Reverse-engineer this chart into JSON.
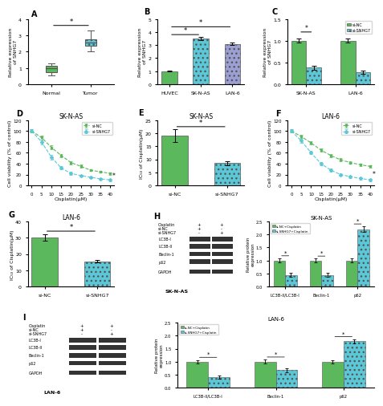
{
  "panel_A": {
    "title": "",
    "ylabel": "Relative expression\nof SNHG7",
    "xlabel_labels": [
      "Normal",
      "Tumor"
    ],
    "normal_box": {
      "q1": 0.75,
      "median": 1.0,
      "q3": 1.15,
      "whisker_low": 0.55,
      "whisker_high": 1.3
    },
    "tumor_box": {
      "q1": 2.35,
      "median": 2.55,
      "q3": 2.75,
      "whisker_low": 2.0,
      "whisker_high": 3.3
    },
    "ylim": [
      0,
      4
    ],
    "yticks": [
      0,
      1,
      2,
      3,
      4
    ],
    "sig_label": "*",
    "normal_color": "#5cb85c",
    "tumor_color": "#5bc8d8"
  },
  "panel_B": {
    "title": "",
    "ylabel": "Relative expression\nof SNHG7",
    "categories": [
      "HUVEC",
      "SK-N-AS",
      "LAN-6"
    ],
    "values": [
      1.0,
      3.5,
      3.1
    ],
    "errors": [
      0.05,
      0.15,
      0.1
    ],
    "colors": [
      "#5cb85c",
      "#5bc8d8",
      "#9b9fd4"
    ],
    "ylim": [
      0,
      5
    ],
    "yticks": [
      0,
      1,
      2,
      3,
      4,
      5
    ],
    "sig_label": "*"
  },
  "panel_C": {
    "title": "",
    "ylabel": "Relative expression\nof SNHG7",
    "groups": [
      "SK-N-AS",
      "LAN-6"
    ],
    "si_NC_values": [
      1.0,
      1.0
    ],
    "si_SNHG7_values": [
      0.38,
      0.28
    ],
    "si_NC_errors": [
      0.05,
      0.05
    ],
    "si_SNHG7_errors": [
      0.04,
      0.04
    ],
    "ylim": [
      0,
      1.5
    ],
    "yticks": [
      0.0,
      0.5,
      1.0,
      1.5
    ],
    "sig_label": "*",
    "si_NC_color": "#5cb85c",
    "si_SNHG7_color": "#5bc8d8"
  },
  "panel_D": {
    "title": "SK-N-AS",
    "xlabel": "Cisplatin(μM)",
    "ylabel": "Cell viability (% of control)",
    "x": [
      0,
      5,
      10,
      15,
      20,
      25,
      30,
      35,
      40
    ],
    "si_NC": [
      100,
      88,
      70,
      55,
      42,
      35,
      28,
      25,
      22
    ],
    "si_SNHG7": [
      100,
      80,
      52,
      32,
      22,
      18,
      15,
      12,
      10
    ],
    "si_NC_errors": [
      3,
      4,
      4,
      3,
      3,
      3,
      2,
      2,
      2
    ],
    "si_SNHG7_errors": [
      3,
      4,
      4,
      3,
      3,
      2,
      2,
      2,
      2
    ],
    "ylim": [
      0,
      120
    ],
    "yticks": [
      0,
      20,
      40,
      60,
      80,
      100,
      120
    ],
    "xticks": [
      0,
      5,
      10,
      15,
      20,
      25,
      30,
      35,
      40
    ],
    "si_NC_color": "#5cb85c",
    "si_SNHG7_color": "#5bc8d8",
    "sig_label": "*"
  },
  "panel_E": {
    "title": "SK-N-AS",
    "ylabel": "IC₅₀ of Cisplatin(μM)",
    "categories": [
      "si-NC",
      "si-SNHG7"
    ],
    "values": [
      19.0,
      8.5
    ],
    "errors": [
      2.5,
      0.8
    ],
    "colors": [
      "#5cb85c",
      "#5bc8d8"
    ],
    "ylim": [
      0,
      25
    ],
    "yticks": [
      0,
      5,
      10,
      15,
      20,
      25
    ],
    "sig_label": "*"
  },
  "panel_F": {
    "title": "LAN-6",
    "xlabel": "Cisplatin(μM)",
    "ylabel": "Cell viability (% of control)",
    "x": [
      0,
      5,
      10,
      15,
      20,
      25,
      30,
      35,
      40
    ],
    "si_NC": [
      100,
      90,
      78,
      65,
      55,
      47,
      42,
      38,
      35
    ],
    "si_SNHG7": [
      100,
      82,
      60,
      40,
      28,
      20,
      16,
      13,
      10
    ],
    "si_NC_errors": [
      3,
      3,
      3,
      3,
      3,
      3,
      2,
      2,
      2
    ],
    "si_SNHG7_errors": [
      3,
      3,
      3,
      3,
      3,
      2,
      2,
      2,
      2
    ],
    "ylim": [
      0,
      120
    ],
    "yticks": [
      0,
      20,
      40,
      60,
      80,
      100,
      120
    ],
    "xticks": [
      0,
      5,
      10,
      15,
      20,
      25,
      30,
      35,
      40
    ],
    "si_NC_color": "#5cb85c",
    "si_SNHG7_color": "#5bc8d8",
    "sig_label": "*"
  },
  "panel_G": {
    "title": "LAN-6",
    "ylabel": "IC₅₀ of Cisplatin(μM)",
    "categories": [
      "si-NC",
      "si-SNHG7"
    ],
    "values": [
      30.0,
      15.5
    ],
    "errors": [
      2.0,
      0.8
    ],
    "colors": [
      "#5cb85c",
      "#5bc8d8"
    ],
    "ylim": [
      0,
      40
    ],
    "yticks": [
      0,
      10,
      20,
      30,
      40
    ],
    "sig_label": "*"
  },
  "panel_H_bar_SKNAS": {
    "title": "SK-N-AS",
    "categories": [
      "LC3B-II/LC3B-I",
      "Beclin-1",
      "p62"
    ],
    "si_NC_cisplatin": [
      1.0,
      1.0,
      1.0
    ],
    "si_SNHG7_cisplatin": [
      0.45,
      0.45,
      2.2
    ],
    "si_NC_errors": [
      0.08,
      0.07,
      0.08
    ],
    "si_SNHG7_errors": [
      0.07,
      0.07,
      0.1
    ],
    "ylim": [
      0,
      2.5
    ],
    "yticks": [
      0,
      0.5,
      1.0,
      1.5,
      2.0,
      2.5
    ],
    "ylabel": "Relative protein\nexpression",
    "si_NC_color": "#5cb85c",
    "si_SNHG7_color": "#5bc8d8",
    "sig_label": "*",
    "legend": [
      "si-NC+Cisplatin",
      "si-SNHG7+Cisplatin"
    ]
  },
  "panel_I_bar_LAN6": {
    "title": "LAN-6",
    "categories": [
      "LC3B-II/LC3B-I",
      "Beclin-1",
      "p62"
    ],
    "si_NC_cisplatin": [
      1.0,
      1.0,
      1.0
    ],
    "si_SNHG7_cisplatin": [
      0.42,
      0.68,
      1.78
    ],
    "si_NC_errors": [
      0.07,
      0.08,
      0.07
    ],
    "si_SNHG7_errors": [
      0.06,
      0.07,
      0.08
    ],
    "ylim": [
      0,
      2.5
    ],
    "yticks": [
      0,
      0.5,
      1.0,
      1.5,
      2.0,
      2.5
    ],
    "ylabel": "Relative protein\nexpression",
    "si_NC_color": "#5cb85c",
    "si_SNHG7_color": "#5bc8d8",
    "sig_label": "*",
    "legend": [
      "si-NC+Cisplatin",
      "si-SNHG7+Cisplatin"
    ]
  },
  "western_blot_H_labels": [
    "Cisplatin",
    "si-NC",
    "si-SNHG7",
    "LC3B-I",
    "LC3B-II",
    "Beclin-1",
    "p62",
    "GAPDH"
  ],
  "western_blot_I_labels": [
    "Cisplatin",
    "si-NC",
    "si-SNHG7",
    "LC3B-I",
    "LC3B-II",
    "Beclin-1",
    "p62",
    "GAPDH"
  ],
  "background_color": "#ffffff"
}
